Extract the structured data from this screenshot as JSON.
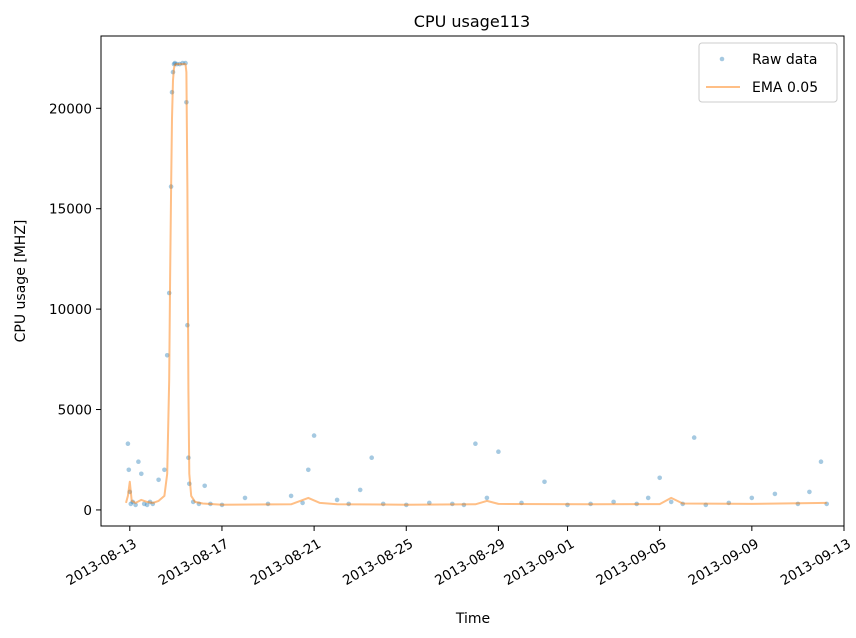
{
  "chart_data": {
    "type": "scatter",
    "title": "CPU usage113",
    "xlabel": "Time",
    "ylabel": "CPU usage [MHZ]",
    "xlim": [
      "2013-08-11T18:00",
      "2013-09-13T00:00"
    ],
    "ylim": [
      -800,
      23600
    ],
    "x_ticks": [
      "2013-08-13",
      "2013-08-17",
      "2013-08-21",
      "2013-08-25",
      "2013-08-29",
      "2013-09-01",
      "2013-09-05",
      "2013-09-09",
      "2013-09-13"
    ],
    "y_ticks": [
      0,
      5000,
      10000,
      15000,
      20000
    ],
    "legend": {
      "position": "top-right"
    },
    "grid": false,
    "colors": {
      "raw": "#1f77b4",
      "ema": "#ff7f0e"
    },
    "series": [
      {
        "name": "Raw data",
        "kind": "points",
        "x": [
          "2013-08-12T22:00",
          "2013-08-12T23:00",
          "2013-08-13T00:00",
          "2013-08-13T01:00",
          "2013-08-13T03:00",
          "2013-08-13T06:00",
          "2013-08-13T09:00",
          "2013-08-13T12:00",
          "2013-08-13T15:00",
          "2013-08-13T18:00",
          "2013-08-13T21:00",
          "2013-08-14T00:00",
          "2013-08-14T06:00",
          "2013-08-14T12:00",
          "2013-08-14T15:00",
          "2013-08-14T17:00",
          "2013-08-14T19:00",
          "2013-08-14T20:00",
          "2013-08-14T21:00",
          "2013-08-14T22:00",
          "2013-08-14T23:00",
          "2013-08-15T01:00",
          "2013-08-15T04:00",
          "2013-08-15T07:00",
          "2013-08-15T10:00",
          "2013-08-15T11:00",
          "2013-08-15T12:00",
          "2013-08-15T13:00",
          "2013-08-15T14:00",
          "2013-08-15T18:00",
          "2013-08-16T00:00",
          "2013-08-16T06:00",
          "2013-08-16T12:00",
          "2013-08-17T00:00",
          "2013-08-18T00:00",
          "2013-08-19T00:00",
          "2013-08-20T00:00",
          "2013-08-20T12:00",
          "2013-08-20T18:00",
          "2013-08-21T00:00",
          "2013-08-22T00:00",
          "2013-08-22T12:00",
          "2013-08-23T00:00",
          "2013-08-23T12:00",
          "2013-08-24T00:00",
          "2013-08-25T00:00",
          "2013-08-26T00:00",
          "2013-08-27T00:00",
          "2013-08-27T12:00",
          "2013-08-28T00:00",
          "2013-08-28T12:00",
          "2013-08-29T00:00",
          "2013-08-30T00:00",
          "2013-08-31T00:00",
          "2013-09-01T00:00",
          "2013-09-02T00:00",
          "2013-09-03T00:00",
          "2013-09-04T00:00",
          "2013-09-04T12:00",
          "2013-09-05T00:00",
          "2013-09-05T12:00",
          "2013-09-06T00:00",
          "2013-09-06T12:00",
          "2013-09-07T00:00",
          "2013-09-08T00:00",
          "2013-09-09T00:00",
          "2013-09-10T00:00",
          "2013-09-11T00:00",
          "2013-09-11T12:00",
          "2013-09-12T00:00",
          "2013-09-12T06:00"
        ],
        "y": [
          3300,
          2000,
          900,
          300,
          400,
          250,
          2400,
          1800,
          300,
          250,
          400,
          300,
          1500,
          2000,
          7700,
          10800,
          16100,
          20800,
          21800,
          22200,
          22250,
          22200,
          22200,
          22250,
          22250,
          20300,
          9200,
          2600,
          1300,
          400,
          300,
          1200,
          300,
          250,
          600,
          300,
          700,
          350,
          2000,
          3700,
          500,
          300,
          1000,
          2600,
          300,
          250,
          350,
          300,
          250,
          3300,
          600,
          2900,
          350,
          1400,
          250,
          300,
          400,
          300,
          600,
          1600,
          400,
          300,
          3600,
          250,
          350,
          600,
          800,
          300,
          900,
          2400,
          300
        ]
      },
      {
        "name": "EMA 0.05",
        "kind": "line",
        "x": [
          "2013-08-12T20:00",
          "2013-08-12T22:00",
          "2013-08-13T00:00",
          "2013-08-13T02:00",
          "2013-08-13T06:00",
          "2013-08-13T12:00",
          "2013-08-13T18:00",
          "2013-08-14T00:00",
          "2013-08-14T06:00",
          "2013-08-14T12:00",
          "2013-08-14T15:00",
          "2013-08-14T17:00",
          "2013-08-14T18:00",
          "2013-08-14T19:00",
          "2013-08-14T20:00",
          "2013-08-14T21:00",
          "2013-08-14T22:00",
          "2013-08-14T23:00",
          "2013-08-15T00:00",
          "2013-08-15T04:00",
          "2013-08-15T08:00",
          "2013-08-15T10:00",
          "2013-08-15T11:00",
          "2013-08-15T12:00",
          "2013-08-15T13:00",
          "2013-08-15T14:00",
          "2013-08-15T16:00",
          "2013-08-15T20:00",
          "2013-08-16T04:00",
          "2013-08-17T00:00",
          "2013-08-20T00:00",
          "2013-08-20T18:00",
          "2013-08-21T06:00",
          "2013-08-22T00:00",
          "2013-08-25T00:00",
          "2013-08-28T00:00",
          "2013-08-28T12:00",
          "2013-08-29T00:00",
          "2013-09-02T00:00",
          "2013-09-05T00:00",
          "2013-09-05T12:00",
          "2013-09-06T00:00",
          "2013-09-09T00:00",
          "2013-09-12T06:00"
        ],
        "y": [
          350,
          700,
          1400,
          450,
          350,
          500,
          400,
          350,
          450,
          700,
          1800,
          6500,
          11500,
          16000,
          19500,
          21400,
          22000,
          22150,
          22200,
          22200,
          22200,
          22200,
          21800,
          16000,
          6000,
          1800,
          700,
          400,
          320,
          260,
          280,
          600,
          350,
          280,
          260,
          280,
          450,
          300,
          280,
          290,
          600,
          320,
          300,
          350
        ]
      }
    ]
  }
}
